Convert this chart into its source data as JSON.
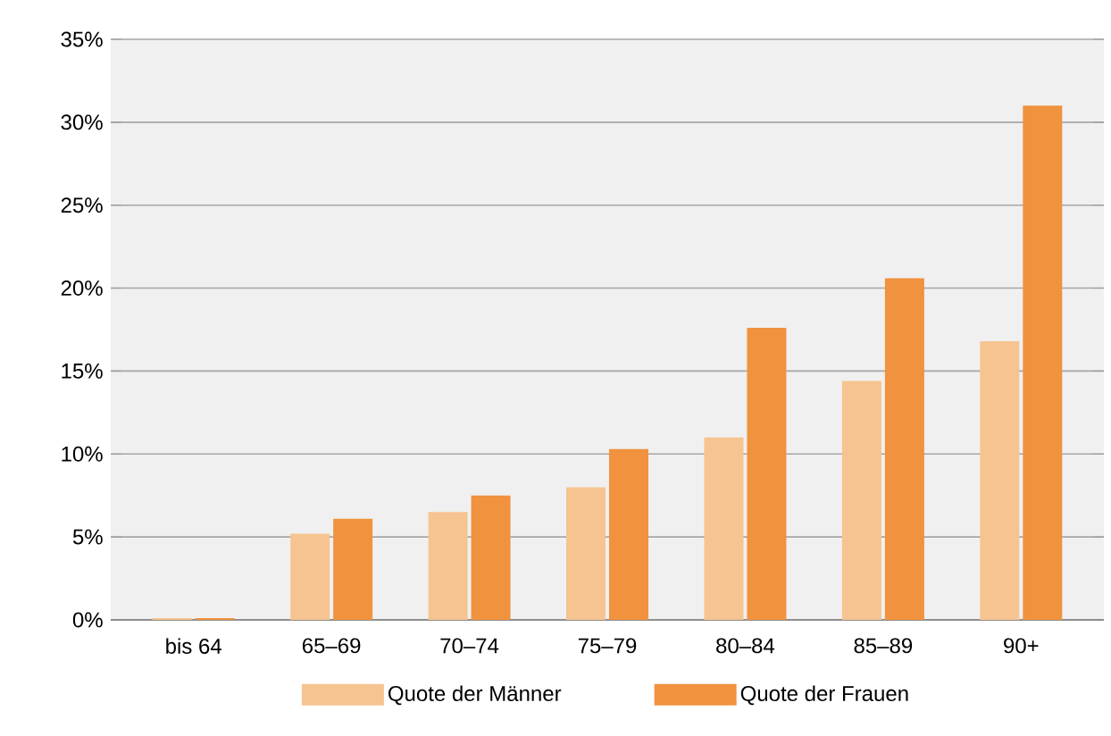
{
  "chart_data": {
    "type": "bar",
    "categories": [
      "bis 64",
      "65–69",
      "70–74",
      "75–79",
      "80–84",
      "85–89",
      "90+"
    ],
    "series": [
      {
        "name": "Quote der Männer",
        "color": "#f6c490",
        "values": [
          0.1,
          5.2,
          6.5,
          8.0,
          11.0,
          14.4,
          16.8
        ]
      },
      {
        "name": "Quote der Frauen",
        "color": "#f0923e",
        "values": [
          0.1,
          6.1,
          7.5,
          10.3,
          17.6,
          20.6,
          31.0
        ]
      }
    ],
    "ylim": [
      0,
      35
    ],
    "yticks": [
      {
        "value": 0,
        "label": "0%"
      },
      {
        "value": 5,
        "label": "5%"
      },
      {
        "value": 10,
        "label": "10%"
      },
      {
        "value": 15,
        "label": "15%"
      },
      {
        "value": 20,
        "label": "20%"
      },
      {
        "value": 25,
        "label": "25%"
      },
      {
        "value": 30,
        "label": "30%"
      },
      {
        "value": 35,
        "label": "35%"
      }
    ],
    "grid": "y",
    "legend": "bottom"
  }
}
